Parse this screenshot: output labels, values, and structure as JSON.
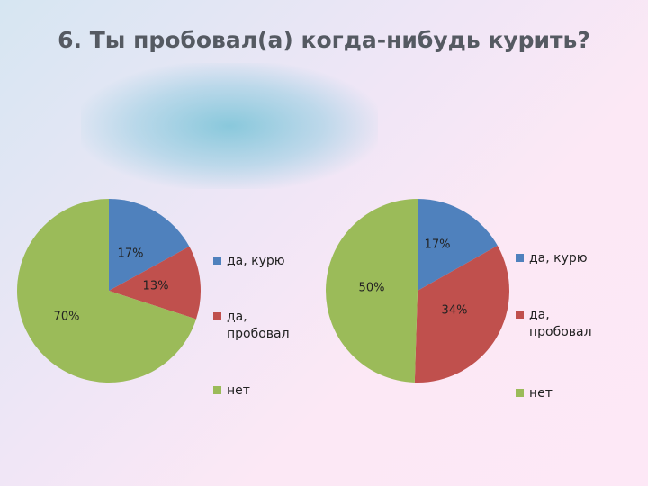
{
  "title": "6. Ты пробовал(а) когда-нибудь курить?",
  "chart_data": [
    {
      "type": "pie",
      "categories": [
        "да, курю",
        "да, пробовал",
        "нет"
      ],
      "values": [
        17,
        13,
        70
      ],
      "labels": [
        "17%",
        "13%",
        "70%"
      ],
      "colors": [
        "#4f81bd",
        "#c0504d",
        "#9bbb59"
      ],
      "legend": [
        "да, курю",
        "да, пробовал",
        "нет"
      ],
      "legend_position": "right"
    },
    {
      "type": "pie",
      "categories": [
        "да, курю",
        "да, пробовал",
        "нет"
      ],
      "values": [
        17,
        34,
        50
      ],
      "labels": [
        "17%",
        "34%",
        "50%"
      ],
      "colors": [
        "#4f81bd",
        "#c0504d",
        "#9bbb59"
      ],
      "legend": [
        "да, курю",
        "да, пробовал",
        "нет"
      ],
      "legend_position": "right"
    }
  ]
}
